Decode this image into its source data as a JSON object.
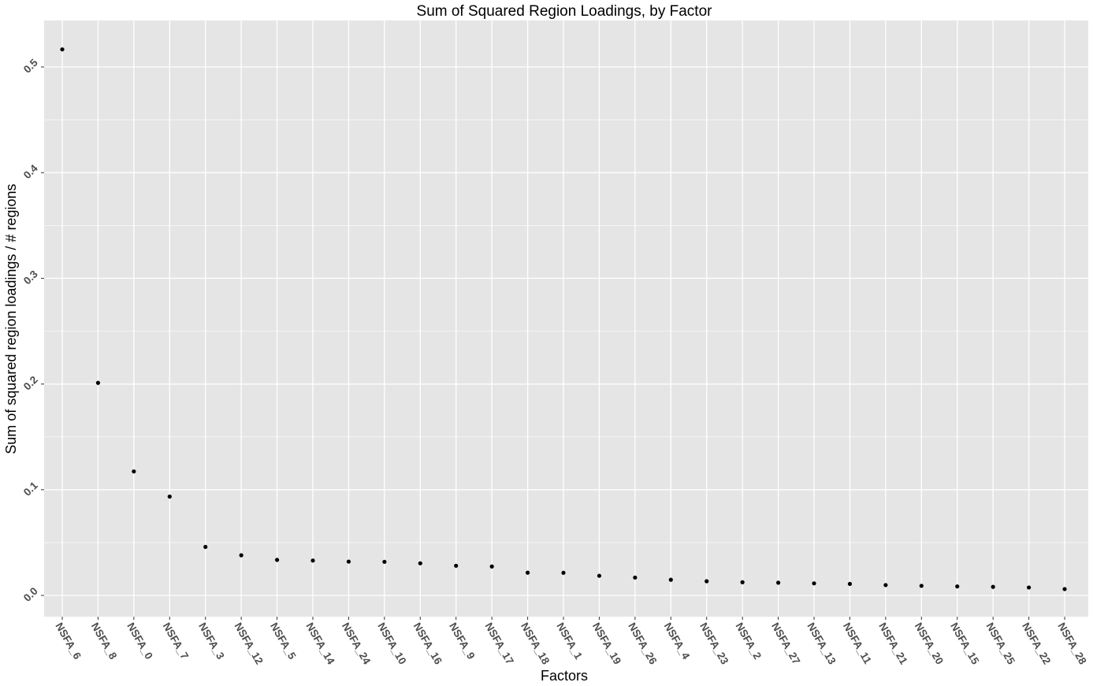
{
  "chart_data": {
    "type": "scatter",
    "title": "Sum of Squared Region Loadings, by Factor",
    "xlabel": "Factors",
    "ylabel": "Sum of squared region loadings / # regions",
    "categories": [
      "NSFA_6",
      "NSFA_8",
      "NSFA_0",
      "NSFA_7",
      "NSFA_3",
      "NSFA_12",
      "NSFA_5",
      "NSFA_14",
      "NSFA_24",
      "NSFA_10",
      "NSFA_16",
      "NSFA_9",
      "NSFA_17",
      "NSFA_18",
      "NSFA_1",
      "NSFA_19",
      "NSFA_26",
      "NSFA_4",
      "NSFA_23",
      "NSFA_2",
      "NSFA_27",
      "NSFA_13",
      "NSFA_11",
      "NSFA_21",
      "NSFA_20",
      "NSFA_15",
      "NSFA_25",
      "NSFA_22",
      "NSFA_28"
    ],
    "values": [
      0.5166,
      0.2011,
      0.1173,
      0.0935,
      0.0459,
      0.038,
      0.0336,
      0.033,
      0.032,
      0.0318,
      0.0304,
      0.0281,
      0.0274,
      0.0215,
      0.0214,
      0.0186,
      0.0169,
      0.0148,
      0.0134,
      0.0125,
      0.012,
      0.0114,
      0.0109,
      0.0098,
      0.0091,
      0.0085,
      0.0081,
      0.0075,
      0.006
    ],
    "yticks": [
      0.0,
      0.1,
      0.2,
      0.3,
      0.4,
      0.5
    ],
    "ytick_labels": [
      "0.0",
      "0.1",
      "0.2",
      "0.3",
      "0.4",
      "0.5"
    ],
    "ylim": [
      -0.0198,
      0.5424
    ],
    "grid": true,
    "point_color": "#000000",
    "panel_color": "#e5e5e5",
    "grid_color": "#ffffff"
  }
}
